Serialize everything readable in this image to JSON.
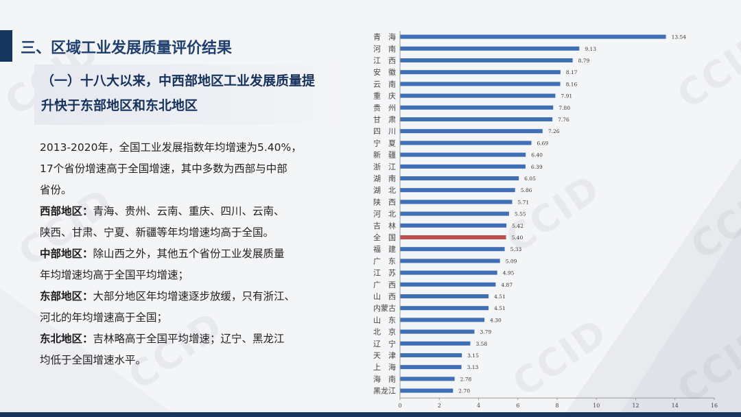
{
  "section_title": "三、区域工业发展质量评价结果",
  "subtitle_line1": "（一）十八大以来，中西部地区工业发展质量提",
  "subtitle_line2": "升快于东部地区和东北地区",
  "intro_line1": "2013-2020年，全国工业发展指数年均增速为5.40%，",
  "intro_line2": "17个省份增速高于全国增速，其中多数为西部与中部",
  "intro_line3": "省份。",
  "west_label": "西部地区：",
  "west_line1": "青海、贵州、云南、重庆、四川、云南、",
  "west_line2": "陕西、甘肃、宁夏、新疆等年均增速均高于全国。",
  "central_label": "中部地区：",
  "central_line1": "除山西之外，其他五个省份工业发展质量",
  "central_line2": "年均增速均高于全国平均增速；",
  "east_label": "东部地区：",
  "east_line1": "大部分地区年均增速逐步放缓，只有浙江、",
  "east_line2": "河北的年均增速高于全国；",
  "northeast_label": "东北地区：",
  "northeast_line1": "吉林略高于全国平均增速；辽宁、黑龙江",
  "northeast_line2": "均低于全国增速水平。",
  "watermark_text": "CCID",
  "colors": {
    "bar": "#3f6fb5",
    "highlight_bar": "#c0504d",
    "title": "#1f3f6e",
    "accent": "#17365d"
  },
  "chart_data": {
    "type": "bar",
    "orientation": "horizontal",
    "categories": [
      "青　海",
      "河　南",
      "江　西",
      "安　徽",
      "云　南",
      "重　庆",
      "贵　州",
      "甘　肃",
      "四　川",
      "宁　夏",
      "新　疆",
      "浙　江",
      "湖　南",
      "湖　北",
      "陕　西",
      "河　北",
      "吉　林",
      "全　国",
      "福　建",
      "广　东",
      "江　苏",
      "广　西",
      "山　西",
      "内蒙古",
      "山　东",
      "北　京",
      "辽　宁",
      "天　津",
      "上　海",
      "海　南",
      "黑龙江"
    ],
    "values": [
      13.54,
      9.13,
      8.79,
      8.17,
      8.16,
      7.91,
      7.8,
      7.76,
      7.26,
      6.69,
      6.4,
      6.39,
      6.05,
      5.86,
      5.71,
      5.55,
      5.42,
      5.4,
      5.33,
      5.09,
      4.95,
      4.87,
      4.51,
      4.51,
      4.3,
      3.79,
      3.58,
      3.15,
      3.13,
      2.78,
      2.7
    ],
    "value_labels": [
      "13.54",
      "9.13",
      "8.79",
      "8.17",
      "8.16",
      "7.91",
      "7.80",
      "7.76",
      "7.26",
      "6.69",
      "6.40",
      "6.39",
      "6.05",
      "5.86",
      "5.71",
      "5.55",
      "5.42",
      "5.40",
      "5.33",
      "5.09",
      "4.95",
      "4.87",
      "4.51",
      "4.51",
      "4.30",
      "3.79",
      "3.58",
      "3.15",
      "3.13",
      "2.78",
      "2.70"
    ],
    "highlight_index": 17,
    "xlim": [
      0,
      16
    ],
    "xticks": [
      "0",
      "2",
      "4",
      "6",
      "8",
      "10",
      "12",
      "14",
      "16"
    ],
    "title": "",
    "xlabel": "",
    "ylabel": "",
    "grid": false
  }
}
